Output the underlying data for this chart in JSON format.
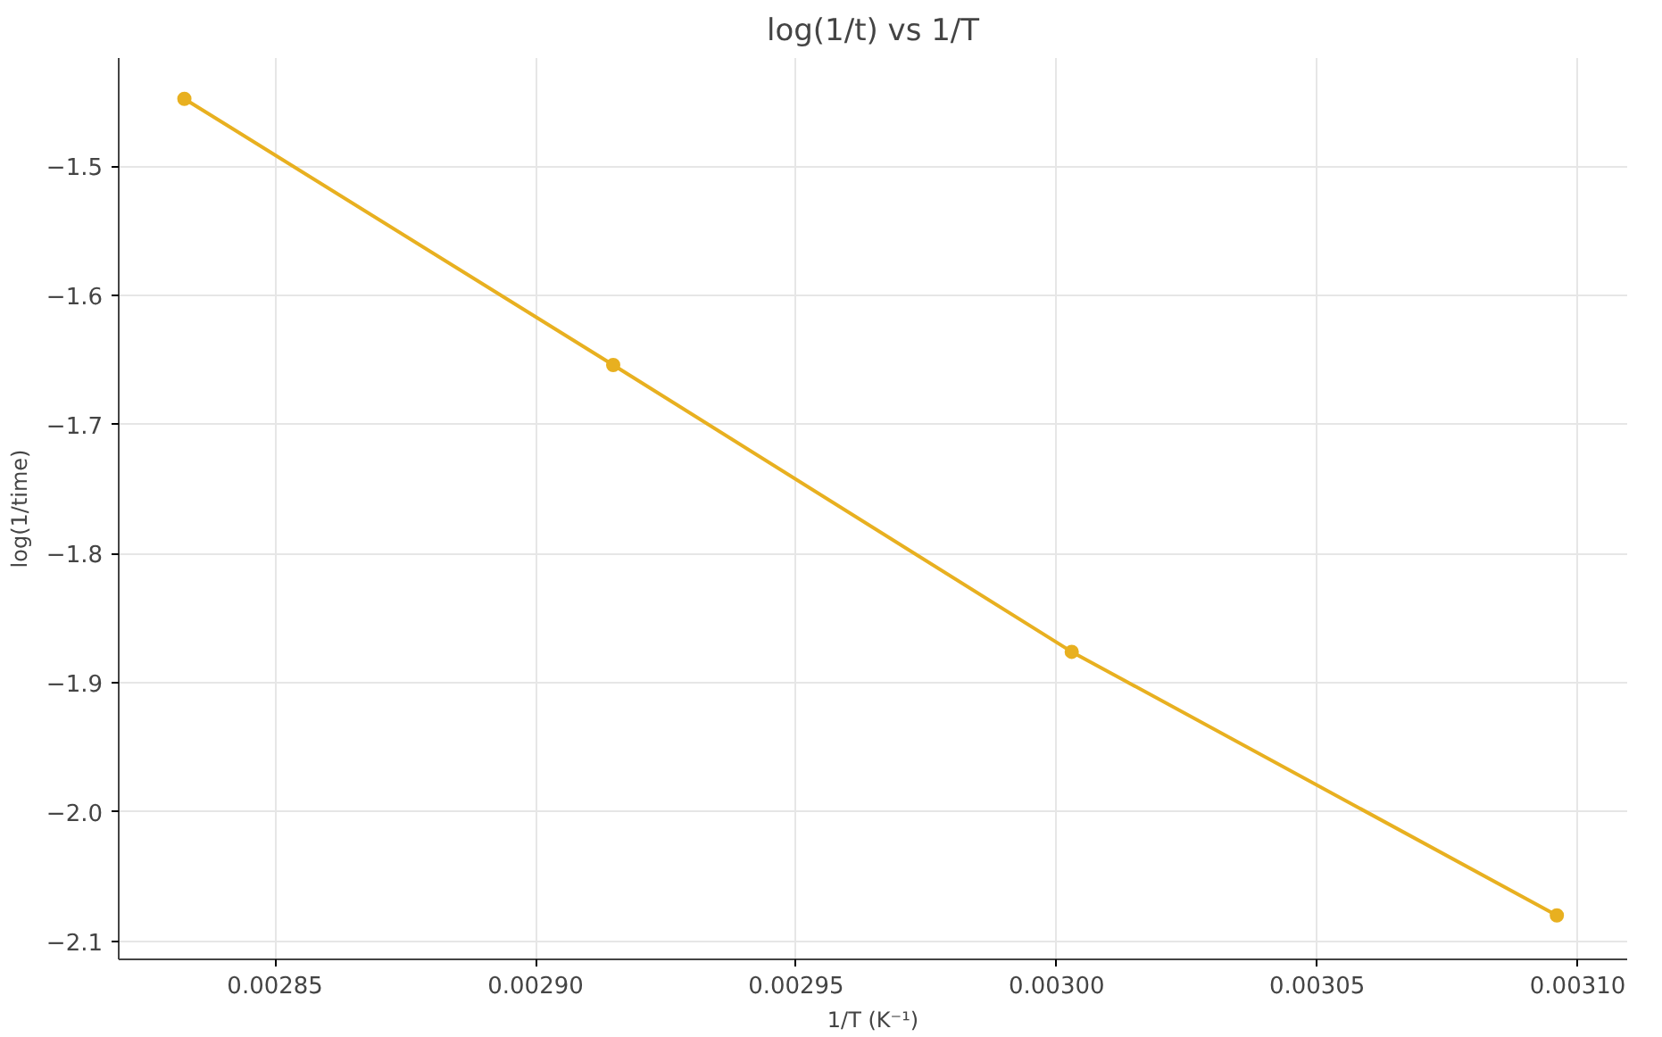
{
  "chart_data": {
    "type": "line",
    "title": "log(1/t) vs 1/T",
    "xlabel": "1/T (K⁻¹)",
    "ylabel": "log(1/time)",
    "x": [
      0.0028326,
      0.0029149,
      0.0030029,
      0.003096
    ],
    "series": [
      {
        "color": "#e8b020",
        "values": [
          -1.448,
          -1.654,
          -1.876,
          -2.08
        ]
      }
    ],
    "xlim": [
      0.00282,
      0.0031095
    ],
    "ylim": [
      -2.114,
      -1.4164
    ],
    "xticks": [
      {
        "value": 0.00285,
        "label": "0.00285"
      },
      {
        "value": 0.0029,
        "label": "0.00290"
      },
      {
        "value": 0.00295,
        "label": "0.00295"
      },
      {
        "value": 0.003,
        "label": "0.00300"
      },
      {
        "value": 0.00305,
        "label": "0.00305"
      },
      {
        "value": 0.0031,
        "label": "0.00310"
      }
    ],
    "yticks": [
      {
        "value": -2.1,
        "label": "−2.1"
      },
      {
        "value": -2.0,
        "label": "−2.0"
      },
      {
        "value": -1.9,
        "label": "−1.9"
      },
      {
        "value": -1.8,
        "label": "−1.8"
      },
      {
        "value": -1.7,
        "label": "−1.7"
      },
      {
        "value": -1.6,
        "label": "−1.6"
      },
      {
        "value": -1.5,
        "label": "−1.5"
      }
    ],
    "grid": true,
    "marker": "circle",
    "line_style": "solid"
  }
}
